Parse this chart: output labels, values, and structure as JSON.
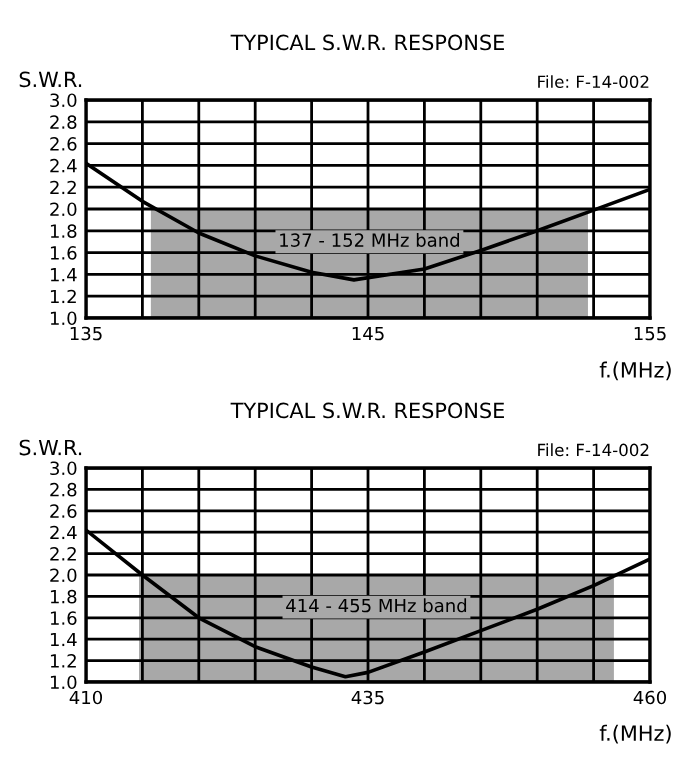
{
  "chart_data": [
    {
      "type": "line",
      "title": "TYPICAL S.W.R. RESPONSE",
      "ylabel": "S.W.R.",
      "xlabel": "f.(MHz)",
      "annotations": [
        "File: F-14-002"
      ],
      "x": [
        135,
        137,
        139,
        141,
        143,
        144.5,
        147,
        149,
        151,
        153,
        155
      ],
      "series": [
        {
          "color": "#000000",
          "values": [
            2.42,
            2.07,
            1.78,
            1.57,
            1.42,
            1.35,
            1.45,
            1.62,
            1.8,
            1.99,
            2.18
          ]
        }
      ],
      "xlim": [
        135,
        155
      ],
      "xticks": [
        135,
        {
          "value": 137,
          "label": null
        },
        {
          "value": 139,
          "label": null
        },
        {
          "value": 141,
          "label": null
        },
        {
          "value": 143,
          "label": null
        },
        145,
        {
          "value": 147,
          "label": null
        },
        {
          "value": 149,
          "label": null
        },
        {
          "value": 151,
          "label": null
        },
        {
          "value": 153,
          "label": null
        },
        155
      ],
      "ylim": [
        1.0,
        3.0
      ],
      "yticks": [
        {
          "value": 1,
          "label": "1.0"
        },
        1.2,
        1.4,
        1.6,
        1.8,
        {
          "value": 2,
          "label": "2.0"
        },
        2.2,
        2.4,
        2.6,
        2.8,
        {
          "value": 3,
          "label": "3.0"
        }
      ],
      "bands": [
        {
          "axis": "x",
          "from": 137.3,
          "to": 152.8,
          "label": "137 - 152 MHz band",
          "color": "#a8a8a8"
        }
      ],
      "grid": true,
      "legend": false
    },
    {
      "type": "line",
      "title": "TYPICAL S.W.R. RESPONSE",
      "ylabel": "S.W.R.",
      "xlabel": "f.(MHz)",
      "annotations": [
        "File: F-14-002"
      ],
      "x": [
        410,
        415,
        420,
        425,
        430,
        433,
        435,
        440,
        445,
        450,
        455,
        460
      ],
      "series": [
        {
          "color": "#000000",
          "values": [
            2.42,
            2.0,
            1.6,
            1.33,
            1.14,
            1.05,
            1.09,
            1.28,
            1.48,
            1.68,
            1.9,
            2.15
          ]
        }
      ],
      "xlim": [
        410,
        460
      ],
      "xticks": [
        410,
        {
          "value": 415,
          "label": null
        },
        {
          "value": 420,
          "label": null
        },
        {
          "value": 425,
          "label": null
        },
        {
          "value": 430,
          "label": null
        },
        435,
        {
          "value": 440,
          "label": null
        },
        {
          "value": 445,
          "label": null
        },
        {
          "value": 450,
          "label": null
        },
        {
          "value": 455,
          "label": null
        },
        460
      ],
      "ylim": [
        1.0,
        3.0
      ],
      "yticks": [
        {
          "value": 1,
          "label": "1.0"
        },
        1.2,
        1.4,
        1.6,
        1.8,
        {
          "value": 2,
          "label": "2.0"
        },
        2.2,
        2.4,
        2.6,
        2.8,
        {
          "value": 3,
          "label": "3.0"
        }
      ],
      "bands": [
        {
          "axis": "x",
          "from": 414.7,
          "to": 456.8,
          "label": "414 - 455 MHz band",
          "color": "#a8a8a8"
        }
      ],
      "grid": true,
      "legend": false
    }
  ]
}
